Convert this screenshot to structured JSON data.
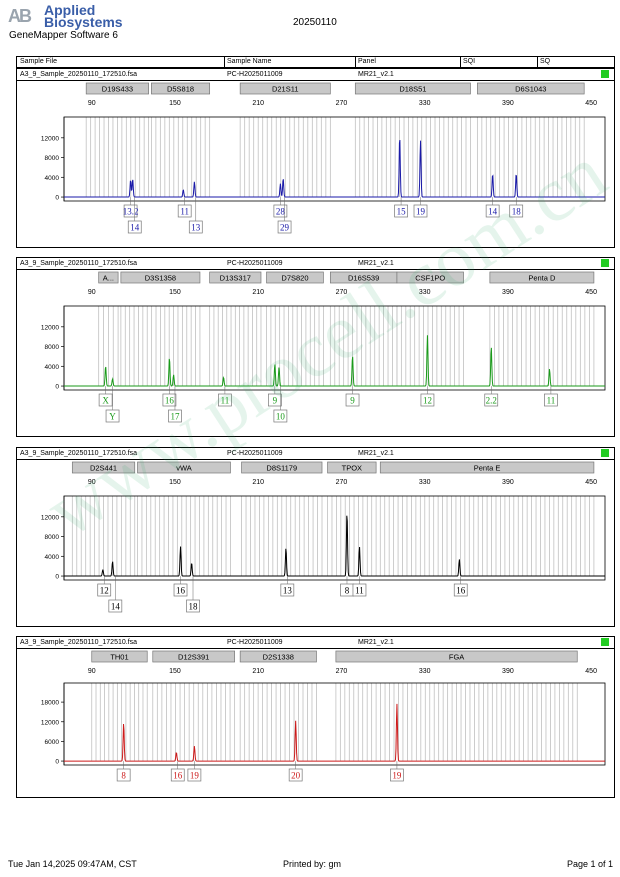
{
  "header": {
    "logo_mark": "AB",
    "logo_line1": "Applied",
    "logo_line2": "Biosystems",
    "software": "GeneMapper Software 6",
    "run_date": "20250110"
  },
  "table_header": {
    "sample_file": "Sample File",
    "sample_name": "Sample Name",
    "panel": "Panel",
    "sqi": "SQI",
    "sq": "SQ"
  },
  "footer": {
    "timestamp": "Tue Jan 14,2025 09:47AM, CST",
    "printed_by": "Printed by: gm",
    "page": "Page 1 of 1"
  },
  "watermark": "www.procell.com.cn",
  "colors": {
    "blue": "#1a1aa8",
    "green": "#1a9a1a",
    "black": "#000000",
    "red": "#cc1a1a",
    "qc_green": "#22cc22",
    "bin_grey": "#c0c0c0",
    "marker_fill": "#c8c8c8"
  },
  "chart_data": [
    {
      "type": "line",
      "dye": "blue",
      "sample_file": "A3_9_Sample_20250110_172510.fsa",
      "sample_name": "PC-H2025011009",
      "panel": "MR21_v2.1",
      "xlim": [
        70,
        460
      ],
      "ylim": [
        -800,
        15000
      ],
      "x_ticks": [
        90,
        150,
        210,
        270,
        330,
        390,
        450
      ],
      "y_ticks": [
        0,
        4000,
        8000,
        12000
      ],
      "markers": [
        {
          "name": "D19S433",
          "start": 86,
          "end": 131
        },
        {
          "name": "D5S818",
          "start": 133,
          "end": 175
        },
        {
          "name": "D21S11",
          "start": 197,
          "end": 262
        },
        {
          "name": "D18S51",
          "start": 280,
          "end": 363
        },
        {
          "name": "D6S1043",
          "start": 368,
          "end": 445
        }
      ],
      "peaks": [
        {
          "x": 118,
          "height": 3500
        },
        {
          "x": 119.5,
          "height": 3700
        },
        {
          "x": 156,
          "height": 1500
        },
        {
          "x": 164,
          "height": 3100
        },
        {
          "x": 226,
          "height": 2700
        },
        {
          "x": 228,
          "height": 3800
        },
        {
          "x": 312,
          "height": 12500
        },
        {
          "x": 327,
          "height": 11500
        },
        {
          "x": 379,
          "height": 4700
        },
        {
          "x": 396,
          "height": 4800
        }
      ],
      "alleles": [
        {
          "label": "13.2",
          "x": 118,
          "row": 1
        },
        {
          "label": "14",
          "x": 121,
          "row": 2
        },
        {
          "label": "11",
          "x": 157,
          "row": 1
        },
        {
          "label": "13",
          "x": 165,
          "row": 2
        },
        {
          "label": "28",
          "x": 226,
          "row": 1
        },
        {
          "label": "29",
          "x": 229,
          "row": 2
        },
        {
          "label": "15",
          "x": 313,
          "row": 1
        },
        {
          "label": "19",
          "x": 327,
          "row": 1
        },
        {
          "label": "14",
          "x": 379,
          "row": 1
        },
        {
          "label": "18",
          "x": 396,
          "row": 1
        }
      ]
    },
    {
      "type": "line",
      "dye": "green",
      "sample_file": "A3_9_Sample_20250110_172510.fsa",
      "sample_name": "PC-H2025011009",
      "panel": "MR21_v2.1",
      "xlim": [
        70,
        460
      ],
      "ylim": [
        -800,
        15000
      ],
      "x_ticks": [
        90,
        150,
        210,
        270,
        330,
        390,
        450
      ],
      "y_ticks": [
        0,
        4000,
        8000,
        12000
      ],
      "markers": [
        {
          "name": "A...",
          "start": 95,
          "end": 109
        },
        {
          "name": "D3S1358",
          "start": 111,
          "end": 168
        },
        {
          "name": "D13S317",
          "start": 175,
          "end": 212
        },
        {
          "name": "D7S820",
          "start": 216,
          "end": 257
        },
        {
          "name": "D16S539",
          "start": 262,
          "end": 310
        },
        {
          "name": "CSF1PO",
          "start": 310,
          "end": 358
        },
        {
          "name": "Penta D",
          "start": 377,
          "end": 452
        }
      ],
      "peaks": [
        {
          "x": 100,
          "height": 4100
        },
        {
          "x": 105,
          "height": 1500
        },
        {
          "x": 146,
          "height": 5800
        },
        {
          "x": 149,
          "height": 2300
        },
        {
          "x": 185,
          "height": 1800
        },
        {
          "x": 222,
          "height": 4500
        },
        {
          "x": 225,
          "height": 3800
        },
        {
          "x": 278,
          "height": 6200
        },
        {
          "x": 332,
          "height": 10300
        },
        {
          "x": 378,
          "height": 8000
        },
        {
          "x": 420,
          "height": 3500
        }
      ],
      "alleles": [
        {
          "label": "X",
          "x": 100,
          "row": 1
        },
        {
          "label": "Y",
          "x": 105,
          "row": 2
        },
        {
          "label": "16",
          "x": 146,
          "row": 1
        },
        {
          "label": "17",
          "x": 150,
          "row": 2
        },
        {
          "label": "11",
          "x": 186,
          "row": 1
        },
        {
          "label": "9",
          "x": 222,
          "row": 1
        },
        {
          "label": "10",
          "x": 226,
          "row": 2
        },
        {
          "label": "9",
          "x": 278,
          "row": 1
        },
        {
          "label": "12",
          "x": 332,
          "row": 1
        },
        {
          "label": "2.2",
          "x": 378,
          "row": 1
        },
        {
          "label": "11",
          "x": 421,
          "row": 1
        }
      ]
    },
    {
      "type": "line",
      "dye": "black",
      "sample_file": "A3_9_Sample_20250110_172510.fsa",
      "sample_name": "PC-H2025011009",
      "panel": "MR21_v2.1",
      "xlim": [
        70,
        460
      ],
      "ylim": [
        -800,
        15000
      ],
      "x_ticks": [
        90,
        150,
        210,
        270,
        330,
        390,
        450
      ],
      "y_ticks": [
        0,
        4000,
        8000,
        12000
      ],
      "markers": [
        {
          "name": "D2S441",
          "start": 76,
          "end": 121
        },
        {
          "name": "vWA",
          "start": 123,
          "end": 190
        },
        {
          "name": "D8S1179",
          "start": 198,
          "end": 256
        },
        {
          "name": "TPOX",
          "start": 260,
          "end": 295
        },
        {
          "name": "Penta E",
          "start": 298,
          "end": 452
        }
      ],
      "peaks": [
        {
          "x": 98,
          "height": 1300
        },
        {
          "x": 105,
          "height": 3000
        },
        {
          "x": 154,
          "height": 6000
        },
        {
          "x": 162,
          "height": 2700
        },
        {
          "x": 230,
          "height": 5700
        },
        {
          "x": 274,
          "height": 13000
        },
        {
          "x": 283,
          "height": 6000
        },
        {
          "x": 355,
          "height": 3400
        }
      ],
      "alleles": [
        {
          "label": "12",
          "x": 99,
          "row": 1
        },
        {
          "label": "14",
          "x": 107,
          "row": 2
        },
        {
          "label": "16",
          "x": 154,
          "row": 1
        },
        {
          "label": "18",
          "x": 163,
          "row": 2
        },
        {
          "label": "13",
          "x": 231,
          "row": 1
        },
        {
          "label": "8",
          "x": 274,
          "row": 1
        },
        {
          "label": "11",
          "x": 283,
          "row": 1
        },
        {
          "label": "16",
          "x": 356,
          "row": 1
        }
      ]
    },
    {
      "type": "line",
      "dye": "red",
      "sample_file": "A3_9_Sample_20250110_172510.fsa",
      "sample_name": "PC-H2025011009",
      "panel": "MR21_v2.1",
      "xlim": [
        70,
        460
      ],
      "ylim": [
        -1200,
        22000
      ],
      "x_ticks": [
        90,
        150,
        210,
        270,
        330,
        390,
        450
      ],
      "y_ticks": [
        0,
        6000,
        12000,
        18000
      ],
      "markers": [
        {
          "name": "TH01",
          "start": 90,
          "end": 130
        },
        {
          "name": "D12S391",
          "start": 134,
          "end": 193
        },
        {
          "name": "D2S1338",
          "start": 197,
          "end": 252
        },
        {
          "name": "FGA",
          "start": 266,
          "end": 440
        }
      ],
      "peaks": [
        {
          "x": 113,
          "height": 11700
        },
        {
          "x": 151,
          "height": 2700
        },
        {
          "x": 164,
          "height": 4600
        },
        {
          "x": 237,
          "height": 12300
        },
        {
          "x": 310,
          "height": 17500
        }
      ],
      "alleles": [
        {
          "label": "8",
          "x": 113,
          "row": 1
        },
        {
          "label": "16",
          "x": 152,
          "row": 1
        },
        {
          "label": "19",
          "x": 164,
          "row": 1
        },
        {
          "label": "20",
          "x": 237,
          "row": 1
        },
        {
          "label": "19",
          "x": 310,
          "row": 1
        }
      ]
    }
  ]
}
